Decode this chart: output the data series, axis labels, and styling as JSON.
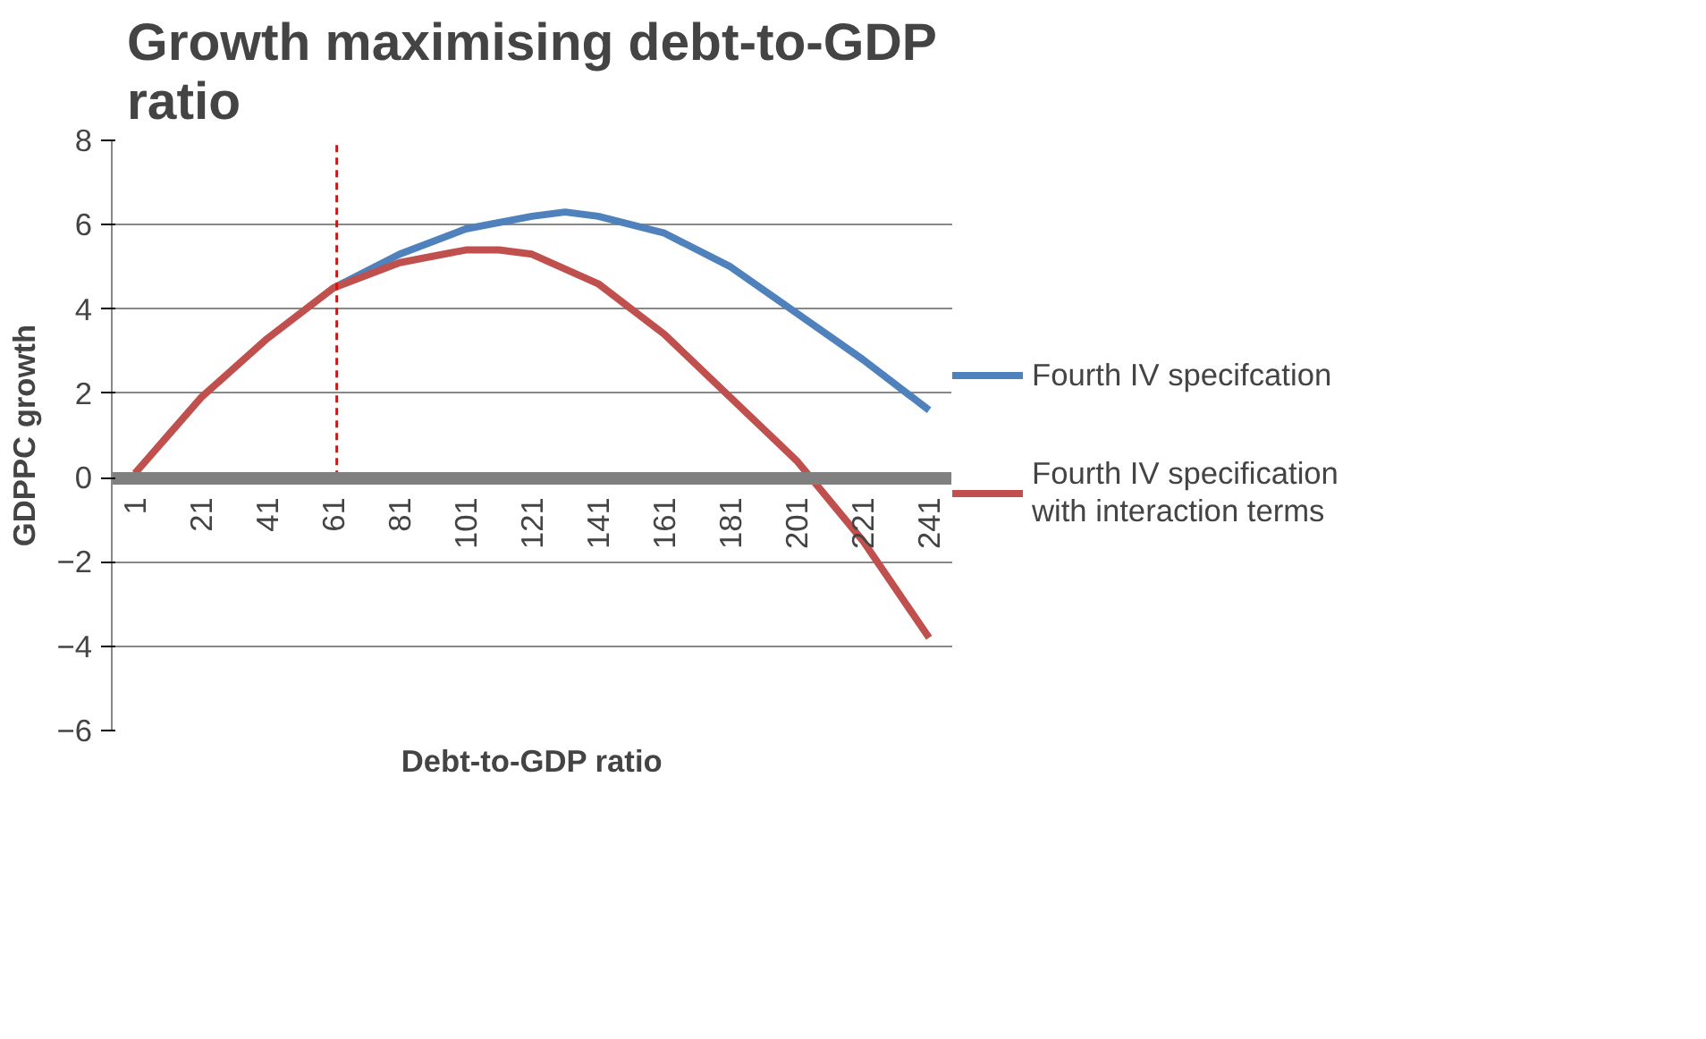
{
  "chart_data": {
    "type": "line",
    "title": "Growth maximising debt-to-GDP ratio",
    "xlabel": "Debt-to-GDP ratio",
    "ylabel": "GDPPC growth",
    "series": [
      {
        "name": "Fourth IV specifcation",
        "color": "#4f81bd",
        "x": [
          61,
          81,
          101,
          121,
          131,
          141,
          161,
          181,
          201,
          221,
          241
        ],
        "values": [
          4.5,
          5.3,
          5.9,
          6.2,
          6.3,
          6.2,
          5.8,
          5.0,
          3.9,
          2.8,
          1.6
        ]
      },
      {
        "name": "Fourth IV specification with interaction terms",
        "color": "#c0504d",
        "x": [
          1,
          11,
          21,
          41,
          61,
          81,
          101,
          111,
          121,
          141,
          161,
          181,
          201,
          221,
          241
        ],
        "values": [
          0.1,
          1.0,
          1.9,
          3.3,
          4.5,
          5.1,
          5.4,
          5.4,
          5.3,
          4.6,
          3.4,
          1.9,
          0.4,
          -1.5,
          -3.8
        ]
      }
    ],
    "xlim": [
      -6,
      248
    ],
    "xticks": [
      1,
      21,
      41,
      61,
      81,
      101,
      121,
      141,
      161,
      181,
      201,
      221,
      241
    ],
    "ylim": [
      -6,
      8
    ],
    "yticks": [
      -6,
      -4,
      -2,
      0,
      2,
      4,
      6,
      8
    ],
    "ref_lines": [
      {
        "axis": "x",
        "value": 62,
        "label": null,
        "color": "#ff0000",
        "line_style": "dashed"
      }
    ],
    "grid": "y",
    "legend": "right",
    "marker": "none",
    "line_style": "solid"
  }
}
